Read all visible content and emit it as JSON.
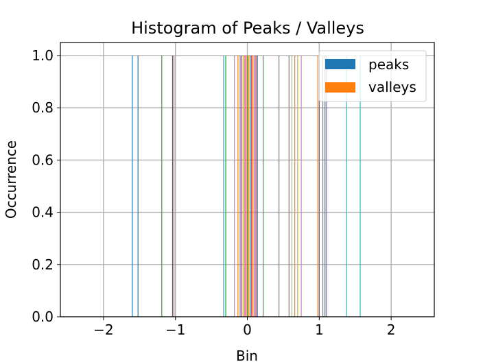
{
  "chart_data": {
    "type": "bar",
    "title": "Histogram of Peaks / Valleys",
    "xlabel": "Bin",
    "ylabel": "Occurrence",
    "xlim": [
      -2.6,
      2.6
    ],
    "ylim": [
      0,
      1.05
    ],
    "xticks": [
      -2,
      -1,
      0,
      1,
      2
    ],
    "xtick_labels": [
      "−2",
      "−1",
      "0",
      "1",
      "2"
    ],
    "yticks": [
      0.0,
      0.2,
      0.4,
      0.6,
      0.8,
      1.0
    ],
    "ytick_labels": [
      "0.0",
      "0.2",
      "0.4",
      "0.6",
      "0.8",
      "1.0"
    ],
    "grid": true,
    "legend_position": "top-right",
    "series": [
      {
        "name": "peaks",
        "color": "#1f77b4"
      },
      {
        "name": "valleys",
        "color": "#ff7f0e"
      }
    ],
    "bar_colors": [
      "#1f77b4",
      "#ff7f0e",
      "#2ca02c",
      "#d62728",
      "#9467bd",
      "#8c564b",
      "#e377c2",
      "#7f7f7f",
      "#bcbd22",
      "#17becf"
    ],
    "bars": [
      {
        "x": -1.6,
        "y": 1.0,
        "color": "#1f77b4"
      },
      {
        "x": -1.52,
        "y": 1.0,
        "color": "#1f77b4"
      },
      {
        "x": -1.19,
        "y": 1.0,
        "color": "#2ca02c"
      },
      {
        "x": -1.04,
        "y": 1.0,
        "color": "#d62728"
      },
      {
        "x": -1.02,
        "y": 1.0,
        "color": "#9467bd"
      },
      {
        "x": -0.33,
        "y": 1.0,
        "color": "#17becf"
      },
      {
        "x": -0.3,
        "y": 1.0,
        "color": "#2ca02c"
      },
      {
        "x": -0.18,
        "y": 1.0,
        "color": "#e377c2"
      },
      {
        "x": -0.13,
        "y": 1.0,
        "color": "#ff7f0e"
      },
      {
        "x": -0.1,
        "y": 1.0,
        "color": "#9467bd"
      },
      {
        "x": -0.08,
        "y": 1.0,
        "color": "#8c564b"
      },
      {
        "x": -0.06,
        "y": 1.0,
        "color": "#bcbd22"
      },
      {
        "x": -0.04,
        "y": 1.0,
        "color": "#e377c2"
      },
      {
        "x": -0.02,
        "y": 1.0,
        "color": "#d62728"
      },
      {
        "x": 0.0,
        "y": 1.0,
        "color": "#2ca02c"
      },
      {
        "x": 0.02,
        "y": 1.0,
        "color": "#ff7f0e"
      },
      {
        "x": 0.04,
        "y": 1.0,
        "color": "#1f77b4"
      },
      {
        "x": 0.06,
        "y": 1.0,
        "color": "#d62728"
      },
      {
        "x": 0.08,
        "y": 1.0,
        "color": "#ff7f0e"
      },
      {
        "x": 0.1,
        "y": 1.0,
        "color": "#9467bd"
      },
      {
        "x": 0.12,
        "y": 1.0,
        "color": "#d62728"
      },
      {
        "x": 0.14,
        "y": 1.0,
        "color": "#1f77b4"
      },
      {
        "x": 0.22,
        "y": 1.0,
        "color": "#2ca02c"
      },
      {
        "x": 0.44,
        "y": 1.0,
        "color": "#7f7f7f"
      },
      {
        "x": 0.58,
        "y": 1.0,
        "color": "#7f7f7f"
      },
      {
        "x": 0.62,
        "y": 1.0,
        "color": "#bcbd22"
      },
      {
        "x": 0.66,
        "y": 1.0,
        "color": "#ff7f0e"
      },
      {
        "x": 0.7,
        "y": 1.0,
        "color": "#bcbd22"
      },
      {
        "x": 0.75,
        "y": 1.0,
        "color": "#e377c2"
      },
      {
        "x": 0.98,
        "y": 1.0,
        "color": "#ff7f0e"
      },
      {
        "x": 1.0,
        "y": 1.0,
        "color": "#8c564b"
      },
      {
        "x": 1.05,
        "y": 1.0,
        "color": "#7f7f7f"
      },
      {
        "x": 1.08,
        "y": 1.0,
        "color": "#1f77b4"
      },
      {
        "x": 1.1,
        "y": 1.0,
        "color": "#9467bd"
      },
      {
        "x": 1.38,
        "y": 1.0,
        "color": "#17becf"
      },
      {
        "x": 1.57,
        "y": 1.0,
        "color": "#17becf"
      }
    ]
  }
}
